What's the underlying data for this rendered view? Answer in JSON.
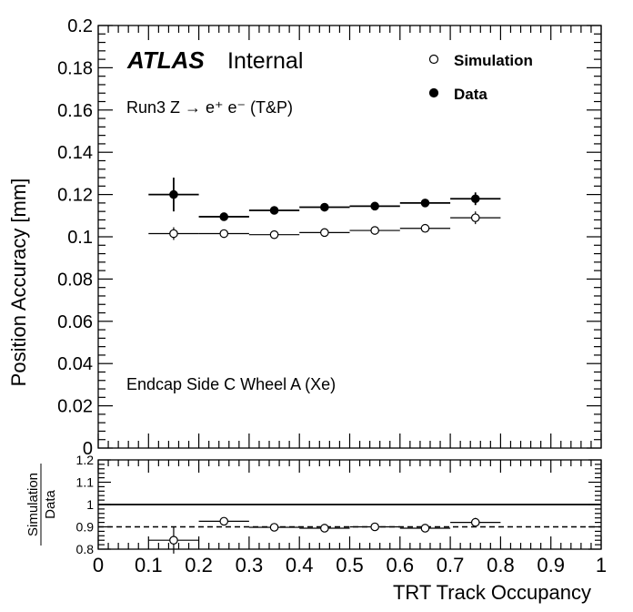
{
  "chart_data": [
    {
      "type": "scatter",
      "panel": "main",
      "ylabel": "Position Accuracy [mm]",
      "ylim": [
        0,
        0.2
      ],
      "xlim": [
        0,
        1
      ],
      "y_ticks": [
        "0",
        "0.02",
        "0.04",
        "0.06",
        "0.08",
        "0.1",
        "0.12",
        "0.14",
        "0.16",
        "0.18",
        "0.2"
      ],
      "annotations": {
        "atlas": "ATLAS",
        "internal": "Internal",
        "run_label": "Run3 Z → e⁺ e⁻ (T&P)",
        "region_label": "Endcap Side C Wheel A (Xe)"
      },
      "legend": {
        "placement": "top-right",
        "entries": [
          "Simulation",
          "Data"
        ]
      },
      "series": [
        {
          "name": "Simulation",
          "marker": "open-circle",
          "x": [
            0.15,
            0.25,
            0.35,
            0.45,
            0.55,
            0.65,
            0.75
          ],
          "x_halfwidth": [
            0.05,
            0.05,
            0.05,
            0.05,
            0.05,
            0.05,
            0.05
          ],
          "y": [
            0.1015,
            0.1015,
            0.101,
            0.102,
            0.103,
            0.104,
            0.109
          ],
          "y_err": [
            0.003,
            0.0012,
            0.0008,
            0.0007,
            0.0007,
            0.0008,
            0.003
          ]
        },
        {
          "name": "Data",
          "marker": "filled-circle",
          "x": [
            0.15,
            0.25,
            0.35,
            0.45,
            0.55,
            0.65,
            0.75
          ],
          "x_halfwidth": [
            0.05,
            0.05,
            0.05,
            0.05,
            0.05,
            0.05,
            0.05
          ],
          "y": [
            0.12,
            0.1095,
            0.1125,
            0.114,
            0.1145,
            0.116,
            0.118
          ],
          "y_err": [
            0.008,
            0.0012,
            0.0015,
            0.001,
            0.001,
            0.0015,
            0.003
          ]
        }
      ]
    },
    {
      "type": "scatter",
      "panel": "ratio",
      "xlabel": "TRT Track Occupancy",
      "ylabel_numerator": "Simulation",
      "ylabel_denominator": "Data",
      "ylim": [
        0.8,
        1.2
      ],
      "xlim": [
        0,
        1
      ],
      "y_ticks": [
        "0.8",
        "0.9",
        "1",
        "1.1",
        "1.2"
      ],
      "x_ticks": [
        "0",
        "0.1",
        "0.2",
        "0.3",
        "0.4",
        "0.5",
        "0.6",
        "0.7",
        "0.8",
        "0.9",
        "1"
      ],
      "reference_lines": [
        {
          "y": 1.0,
          "style": "solid"
        },
        {
          "y": 0.9,
          "style": "dashed"
        }
      ],
      "series": [
        {
          "name": "Simulation/Data",
          "marker": "open-circle",
          "x": [
            0.15,
            0.25,
            0.35,
            0.45,
            0.55,
            0.65,
            0.75
          ],
          "x_halfwidth": [
            0.05,
            0.05,
            0.05,
            0.05,
            0.05,
            0.05,
            0.05
          ],
          "y": [
            0.84,
            0.925,
            0.898,
            0.894,
            0.9,
            0.894,
            0.92
          ],
          "y_err": [
            0.06,
            0.015,
            0.006,
            0.005,
            0.005,
            0.006,
            0.02
          ]
        }
      ]
    }
  ]
}
